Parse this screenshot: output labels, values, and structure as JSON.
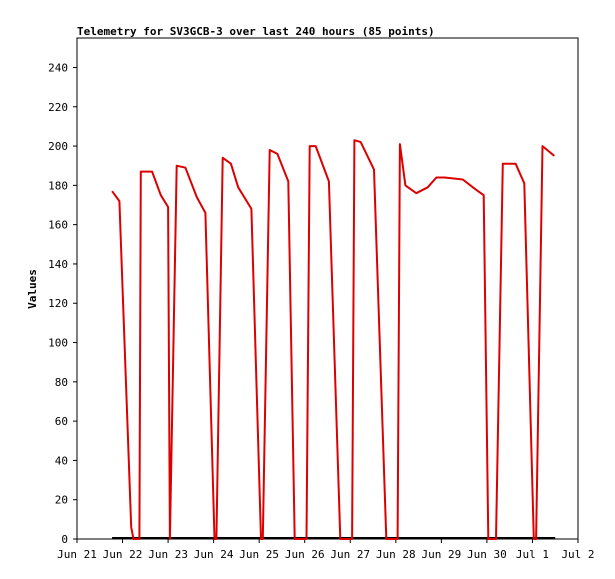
{
  "chart_data": {
    "type": "line",
    "title": "Telemetry for SV3GCB-3 over last 240 hours (85 points)",
    "xlabel": "",
    "ylabel": "Values",
    "ylim": [
      0,
      255
    ],
    "y_ticks": [
      0,
      20,
      40,
      60,
      80,
      100,
      120,
      140,
      160,
      180,
      200,
      220,
      240
    ],
    "x_range_days": [
      0,
      11
    ],
    "x_ticks": [
      {
        "day": 0,
        "label": "Jun 21"
      },
      {
        "day": 1,
        "label": "Jun 22"
      },
      {
        "day": 2,
        "label": "Jun 23"
      },
      {
        "day": 3,
        "label": "Jun 24"
      },
      {
        "day": 4,
        "label": "Jun 25"
      },
      {
        "day": 5,
        "label": "Jun 26"
      },
      {
        "day": 6,
        "label": "Jun 27"
      },
      {
        "day": 7,
        "label": "Jun 28"
      },
      {
        "day": 8,
        "label": "Jun 29"
      },
      {
        "day": 9,
        "label": "Jun 30"
      },
      {
        "day": 10,
        "label": "Jul 1"
      },
      {
        "day": 11,
        "label": "Jul 2"
      }
    ],
    "grid": false,
    "series": [
      {
        "color": "#dd0000",
        "x": [
          0.77,
          0.93,
          1.19,
          1.24,
          1.37,
          1.4,
          1.65,
          1.84,
          2.0,
          2.04,
          2.19,
          2.38,
          2.63,
          2.82,
          3.02,
          3.06,
          3.2,
          3.38,
          3.54,
          3.83,
          4.04,
          4.08,
          4.23,
          4.4,
          4.64,
          4.78,
          5.04,
          5.11,
          5.24,
          5.53,
          5.78,
          6.04,
          6.09,
          6.23,
          6.52,
          6.79,
          7.04,
          7.09,
          7.21,
          7.45,
          7.7,
          7.89,
          8.07,
          8.47,
          8.75,
          8.93,
          9.03,
          9.2,
          9.35,
          9.63,
          9.82,
          10.03,
          10.08,
          10.22,
          10.48
        ],
        "y": [
          177,
          172,
          6,
          0,
          0,
          187,
          187,
          175,
          169,
          0,
          190,
          189,
          174,
          166,
          0,
          0,
          194,
          191,
          179,
          168,
          0,
          0,
          198,
          196,
          182,
          0,
          0,
          200,
          200,
          182,
          0,
          0,
          203,
          202,
          188,
          0,
          0,
          201,
          180,
          176,
          179,
          184,
          184,
          183,
          178,
          175,
          0,
          0,
          191,
          191,
          181,
          0,
          0,
          200,
          195
        ]
      }
    ],
    "baseline": {
      "color": "#000000",
      "value": 0,
      "x_range": [
        0.77,
        10.5
      ]
    }
  }
}
